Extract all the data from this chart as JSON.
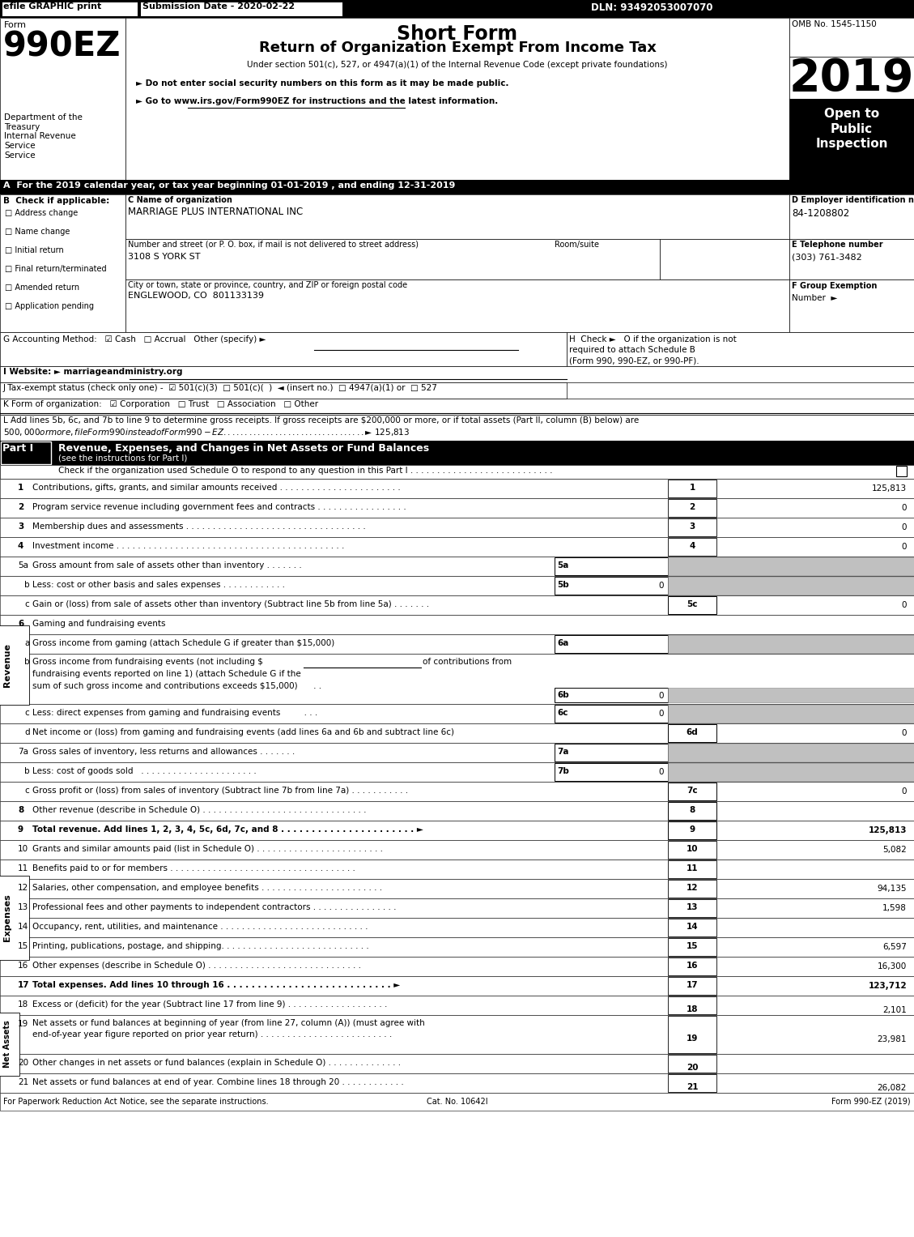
{
  "efile_text": "efile GRAPHIC print",
  "submission_date": "Submission Date - 2020-02-22",
  "dln": "DLN: 93492053007070",
  "form_label": "Form",
  "form_number": "990EZ",
  "short_form_title": "Short Form",
  "main_title": "Return of Organization Exempt From Income Tax",
  "subtitle": "Under section 501(c), 527, or 4947(a)(1) of the Internal Revenue Code (except private foundations)",
  "bullet1": "► Do not enter social security numbers on this form as it may be made public.",
  "bullet2": "► Go to www.irs.gov/Form990EZ for instructions and the latest information.",
  "www_text": "www.irs.gov/Form990EZ",
  "year": "2019",
  "omb": "OMB No. 1545-1150",
  "dept1": "Department of the",
  "dept2": "Treasury",
  "dept3": "Internal Revenue",
  "dept4": "Service",
  "section_a": "A  For the 2019 calendar year, or tax year beginning 01-01-2019 , and ending 12-31-2019",
  "section_b_label": "B  Check if applicable:",
  "checkboxes_b": [
    "Address change",
    "Name change",
    "Initial return",
    "Final return/terminated",
    "Amended return",
    "Application pending"
  ],
  "section_c_label": "C Name of organization",
  "org_name": "MARRIAGE PLUS INTERNATIONAL INC",
  "street_label": "Number and street (or P. O. box, if mail is not delivered to street address)",
  "room_label": "Room/suite",
  "street_addr": "3108 S YORK ST",
  "city_label": "City or town, state or province, country, and ZIP or foreign postal code",
  "city_addr": "ENGLEWOOD, CO  801133139",
  "section_d_label": "D Employer identification number",
  "ein": "84-1208802",
  "section_e_label": "E Telephone number",
  "phone": "(303) 761-3482",
  "section_f_label": "F Group Exemption",
  "section_f2": "Number  ►",
  "section_g": "G Accounting Method:   ☑ Cash   □ Accrual   Other (specify) ►",
  "section_i": "I Website: ► marriageandministry.org",
  "section_j": "J Tax-exempt status (check only one) -  ☑ 501(c)(3)  □ 501(c)(  )  ◄ (insert no.)  □ 4947(a)(1) or  □ 527",
  "section_k": "K Form of organization:   ☑ Corporation   □ Trust   □ Association   □ Other",
  "section_l1": "L Add lines 5b, 6c, and 7b to line 9 to determine gross receipts. If gross receipts are $200,000 or more, or if total assets (Part II, column (B) below) are",
  "section_l2": "$500,000 or more, file Form 990 instead of Form 990-EZ . . . . . . . . . . . . . . . . . . . . . . . . . . . . . . . . . ► $ 125,813",
  "part1_header": "Revenue, Expenses, and Changes in Net Assets or Fund Balances",
  "part1_sub": "(see the instructions for Part I)",
  "part1_check": "Check if the organization used Schedule O to respond to any question in this Part I . . . . . . . . . . . . . . . . . . . . . . . . . . .",
  "footer1": "For Paperwork Reduction Act Notice, see the separate instructions.",
  "footer2": "Cat. No. 10642I",
  "footer3": "Form 990-EZ (2019)",
  "h_line1": "H  Check ►   O if the organization is not",
  "h_line2": "required to attach Schedule B",
  "h_line3": "(Form 990, 990-EZ, or 990-PF).",
  "net19_line1": "Net assets or fund balances at beginning of year (from line 27, column (A)) (must agree with",
  "net19_line2": "end-of-year year figure reported on prior year return) . . . . . . . . . . . . . . . . . . . . . . . . ."
}
